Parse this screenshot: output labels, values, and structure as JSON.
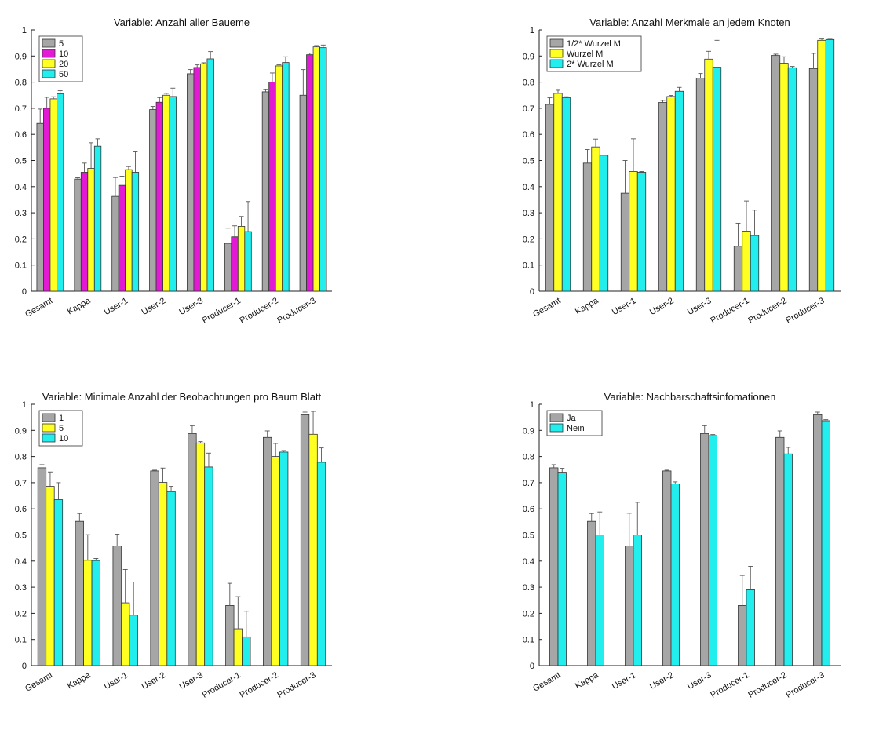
{
  "colors": {
    "gray": "#a6a6a6",
    "magenta": "#e21ad6",
    "yellow": "#ffff22",
    "cyan": "#22eeee"
  },
  "chart_data": [
    {
      "type": "bar",
      "title": "Variable: Anzahl aller Baueme",
      "categories": [
        "Gesamt",
        "Kappa",
        "User-1",
        "User-2",
        "User-3",
        "Producer-1",
        "Producer-2",
        "Producer-3"
      ],
      "ylim": [
        0,
        1
      ],
      "yticks": [
        "0",
        "0.1",
        "0.2",
        "0.3",
        "0.4",
        "0.5",
        "0.6",
        "0.7",
        "0.8",
        "0.9",
        "1"
      ],
      "legend_position": "top-left",
      "series": [
        {
          "name": "5",
          "color": "#a6a6a6",
          "values": [
            0.642,
            0.429,
            0.363,
            0.695,
            0.832,
            0.183,
            0.763,
            0.75
          ],
          "errors": [
            0.055,
            0.005,
            0.072,
            0.012,
            0.016,
            0.058,
            0.008,
            0.098
          ]
        },
        {
          "name": "10",
          "color": "#e21ad6",
          "values": [
            0.7,
            0.455,
            0.405,
            0.723,
            0.856,
            0.208,
            0.8,
            0.905
          ],
          "errors": [
            0.042,
            0.035,
            0.035,
            0.018,
            0.01,
            0.042,
            0.035,
            0.006
          ]
        },
        {
          "name": "20",
          "color": "#ffff22",
          "values": [
            0.736,
            0.47,
            0.465,
            0.75,
            0.87,
            0.248,
            0.862,
            0.935
          ],
          "errors": [
            0.008,
            0.098,
            0.012,
            0.007,
            0.004,
            0.038,
            0.004,
            0.005
          ]
        },
        {
          "name": "50",
          "color": "#22eeee",
          "values": [
            0.755,
            0.555,
            0.455,
            0.745,
            0.889,
            0.228,
            0.875,
            0.932
          ],
          "errors": [
            0.012,
            0.028,
            0.078,
            0.032,
            0.028,
            0.115,
            0.022,
            0.01
          ]
        }
      ]
    },
    {
      "type": "bar",
      "title": "Variable: Anzahl Merkmale an jedem Knoten",
      "categories": [
        "Gesamt",
        "Kappa",
        "User-1",
        "User-2",
        "User-3",
        "Producer-1",
        "Producer-2",
        "Producer-3"
      ],
      "ylim": [
        0,
        1
      ],
      "yticks": [
        "0",
        "0.1",
        "0.2",
        "0.3",
        "0.4",
        "0.5",
        "0.6",
        "0.7",
        "0.8",
        "0.9",
        "1"
      ],
      "legend_position": "top-left",
      "series": [
        {
          "name": "1/2* Wurzel M",
          "color": "#a6a6a6",
          "values": [
            0.715,
            0.49,
            0.375,
            0.722,
            0.815,
            0.172,
            0.902,
            0.852
          ],
          "errors": [
            0.025,
            0.052,
            0.125,
            0.008,
            0.018,
            0.088,
            0.005,
            0.058
          ]
        },
        {
          "name": "Wurzel M",
          "color": "#ffff22",
          "values": [
            0.757,
            0.552,
            0.458,
            0.745,
            0.888,
            0.23,
            0.872,
            0.96
          ],
          "errors": [
            0.012,
            0.03,
            0.125,
            0.004,
            0.03,
            0.115,
            0.025,
            0.005
          ]
        },
        {
          "name": "2* Wurzel M",
          "color": "#22eeee",
          "values": [
            0.74,
            0.52,
            0.455,
            0.765,
            0.857,
            0.213,
            0.855,
            0.963
          ],
          "errors": [
            0.004,
            0.055,
            0.003,
            0.015,
            0.103,
            0.097,
            0.005,
            0.004
          ]
        }
      ]
    },
    {
      "type": "bar",
      "title": "Variable: Minimale Anzahl der Beobachtungen pro Baum Blatt",
      "categories": [
        "Gesamt",
        "Kappa",
        "User-1",
        "User-2",
        "User-3",
        "Producer-1",
        "Producer-2",
        "Producer-3"
      ],
      "ylim": [
        0,
        1
      ],
      "yticks": [
        "0",
        "0.1",
        "0.2",
        "0.3",
        "0.4",
        "0.5",
        "0.6",
        "0.7",
        "0.8",
        "0.9",
        "1"
      ],
      "legend_position": "top-left",
      "series": [
        {
          "name": "1",
          "color": "#a6a6a6",
          "values": [
            0.757,
            0.552,
            0.458,
            0.745,
            0.888,
            0.23,
            0.873,
            0.96
          ],
          "errors": [
            0.012,
            0.03,
            0.045,
            0.003,
            0.03,
            0.085,
            0.025,
            0.01
          ]
        },
        {
          "name": "5",
          "color": "#ffff22",
          "values": [
            0.686,
            0.403,
            0.24,
            0.701,
            0.852,
            0.141,
            0.8,
            0.885
          ],
          "errors": [
            0.055,
            0.098,
            0.128,
            0.055,
            0.005,
            0.123,
            0.05,
            0.088
          ]
        },
        {
          "name": "10",
          "color": "#22eeee",
          "values": [
            0.635,
            0.402,
            0.193,
            0.666,
            0.76,
            0.11,
            0.817,
            0.778
          ],
          "errors": [
            0.065,
            0.008,
            0.127,
            0.02,
            0.053,
            0.098,
            0.006,
            0.055
          ]
        }
      ]
    },
    {
      "type": "bar",
      "title": "Variable: Nachbarschaftsinfomationen",
      "categories": [
        "Gesamt",
        "Kappa",
        "User-1",
        "User-2",
        "User-3",
        "Producer-1",
        "Producer-2",
        "Producer-3"
      ],
      "ylim": [
        0,
        1
      ],
      "yticks": [
        "0",
        "0.1",
        "0.2",
        "0.3",
        "0.4",
        "0.5",
        "0.6",
        "0.7",
        "0.8",
        "0.9",
        "1"
      ],
      "legend_position": "top-left",
      "series": [
        {
          "name": "Ja",
          "color": "#a6a6a6",
          "values": [
            0.757,
            0.552,
            0.458,
            0.745,
            0.888,
            0.23,
            0.873,
            0.96
          ],
          "errors": [
            0.012,
            0.03,
            0.125,
            0.003,
            0.03,
            0.115,
            0.025,
            0.01
          ]
        },
        {
          "name": "Nein",
          "color": "#22eeee",
          "values": [
            0.74,
            0.5,
            0.5,
            0.695,
            0.88,
            0.29,
            0.81,
            0.937
          ],
          "errors": [
            0.015,
            0.088,
            0.125,
            0.008,
            0.004,
            0.09,
            0.025,
            0.004
          ]
        }
      ]
    }
  ]
}
